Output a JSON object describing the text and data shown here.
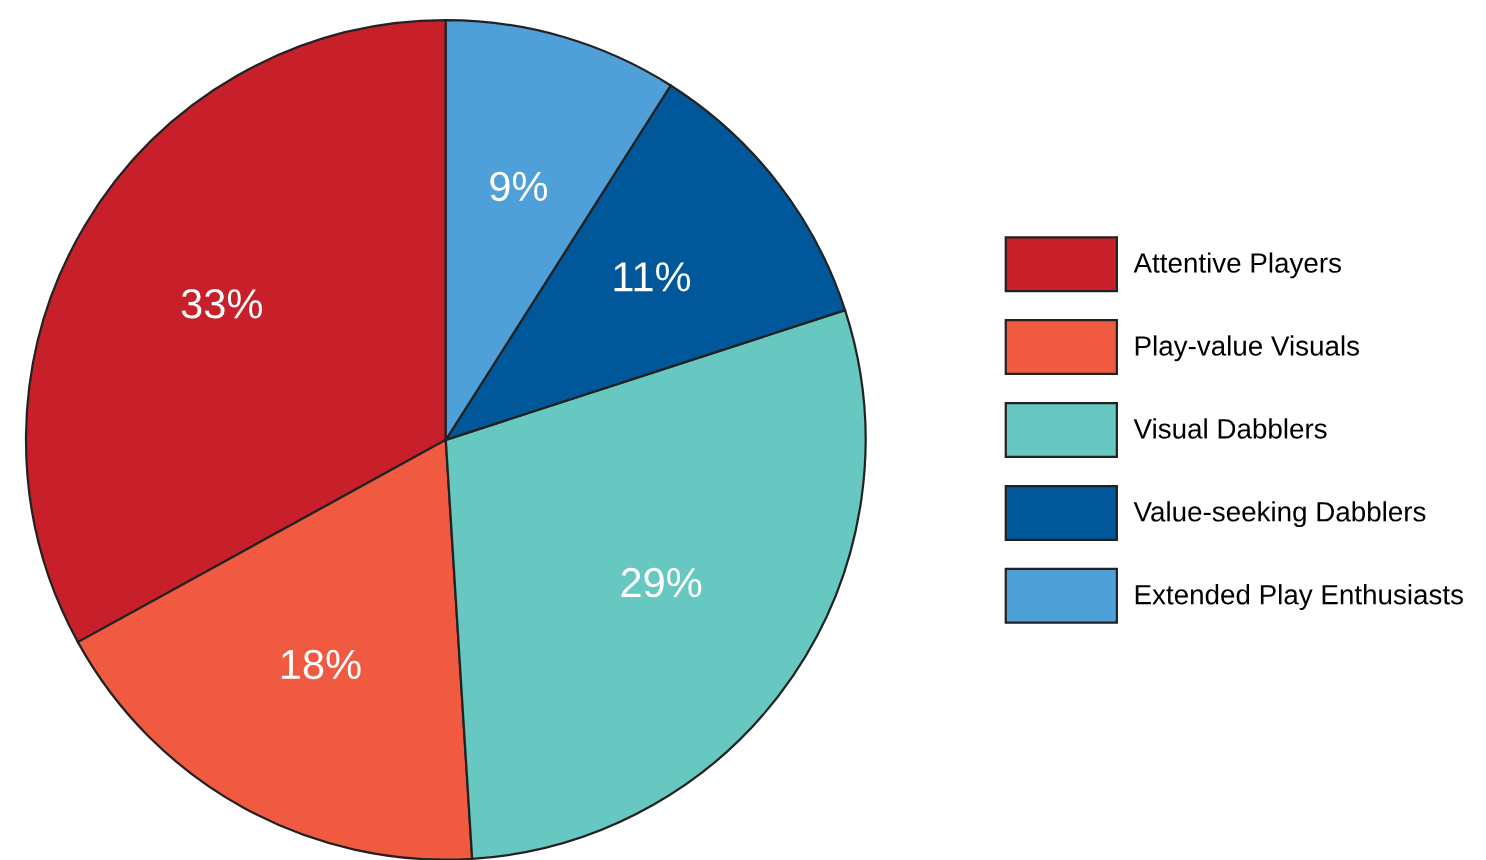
{
  "chart_data": {
    "type": "pie",
    "categories": [
      "Attentive Players",
      "Play-value Visuals",
      "Visual Dabblers",
      "Value-seeking Dabblers",
      "Extended Play Enthusiasts"
    ],
    "values": [
      33,
      18,
      29,
      11,
      9
    ],
    "colors": [
      "#c8202a",
      "#f05a40",
      "#66c8c0",
      "#00589a",
      "#4fa0d8"
    ],
    "value_labels": [
      "33%",
      "18%",
      "29%",
      "11%",
      "9%"
    ],
    "legend": "right"
  }
}
